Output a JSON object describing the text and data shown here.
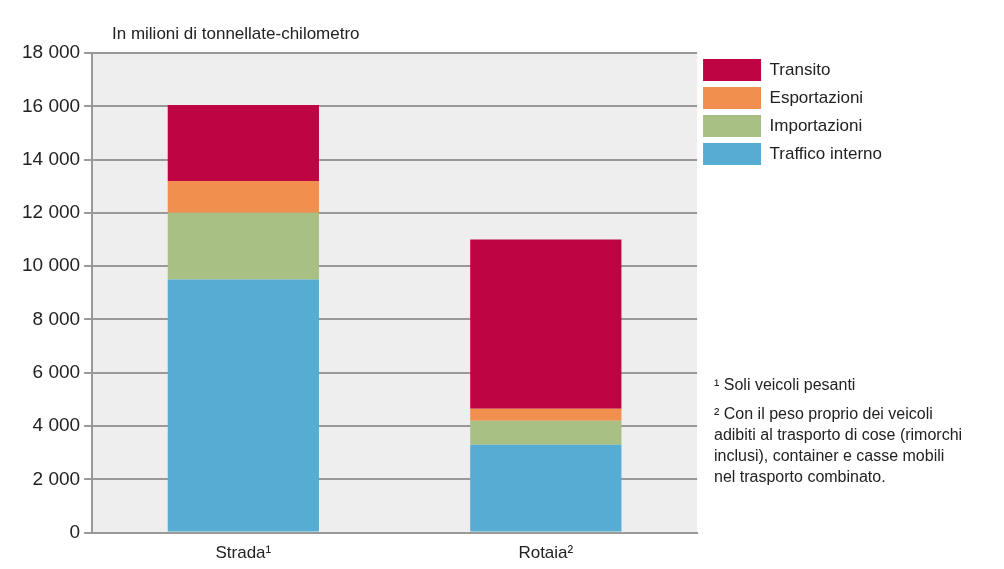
{
  "chart_data": {
    "type": "bar",
    "stacked": true,
    "ylabel": "In milioni di tonnellate-chilometro",
    "categories": [
      "Strada¹",
      "Rotaia²"
    ],
    "series": [
      {
        "name": "Traffico interno",
        "color": "#56acd2",
        "values": [
          9500,
          3300
        ]
      },
      {
        "name": "Importazioni",
        "color": "#a8c083",
        "values": [
          2500,
          900
        ]
      },
      {
        "name": "Esportazioni",
        "color": "#f08f4e",
        "values": [
          1200,
          450
        ]
      },
      {
        "name": "Transito",
        "color": "#be0442",
        "values": [
          2850,
          6350
        ]
      }
    ],
    "ylim": [
      0,
      18000
    ],
    "yticks": [
      0,
      {
        "value": 2000,
        "label": "2 000"
      },
      {
        "value": 4000,
        "label": "4 000"
      },
      {
        "value": 6000,
        "label": "6 000"
      },
      {
        "value": 8000,
        "label": "8 000"
      },
      {
        "value": 10000,
        "label": "10 000"
      },
      {
        "value": 12000,
        "label": "12 000"
      },
      {
        "value": 14000,
        "label": "14 000"
      },
      {
        "value": 16000,
        "label": "16 000"
      },
      {
        "value": 18000,
        "label": "18 000"
      }
    ],
    "grid": "y",
    "legend": "top right",
    "annotations": [
      "¹ Soli veicoli pesanti",
      "² Con il peso proprio dei veicoli adibiti al trasporto di cose (rimorchi inclusi), container e casse mobili nel trasporto combinato."
    ]
  }
}
